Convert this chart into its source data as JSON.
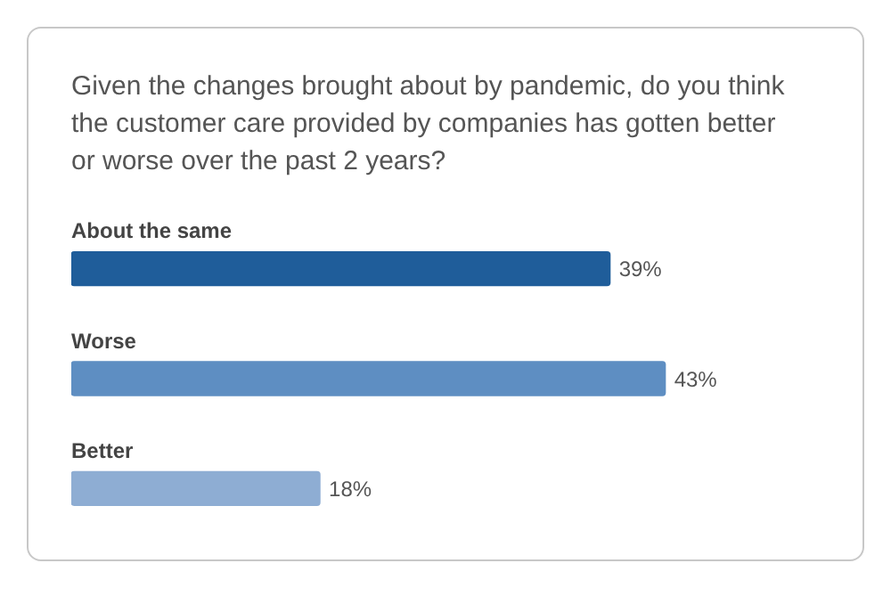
{
  "chart_data": {
    "type": "bar",
    "orientation": "horizontal",
    "title": "Given the changes brought about by pandemic, do you think the customer care provided by companies has gotten better or worse over the past 2 years?",
    "categories": [
      "About the same",
      "Worse",
      "Better"
    ],
    "values": [
      39,
      43,
      18
    ],
    "colors": [
      "#1f5d9a",
      "#5e8ec2",
      "#8eadd3"
    ],
    "value_labels": [
      "39%",
      "43%",
      "18%"
    ]
  }
}
